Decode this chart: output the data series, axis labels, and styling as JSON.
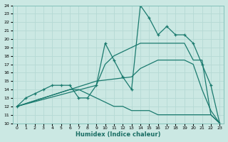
{
  "xlabel": "Humidex (Indice chaleur)",
  "xlabel_color": "#1a6e64",
  "xlim": [
    -0.5,
    23.5
  ],
  "ylim": [
    10,
    24
  ],
  "xticks": [
    0,
    1,
    2,
    3,
    4,
    5,
    6,
    7,
    8,
    9,
    10,
    11,
    12,
    13,
    14,
    15,
    16,
    17,
    18,
    19,
    20,
    21,
    22,
    23
  ],
  "yticks": [
    10,
    11,
    12,
    13,
    14,
    15,
    16,
    17,
    18,
    19,
    20,
    21,
    22,
    23,
    24
  ],
  "bg_color": "#cbe8e3",
  "line_color": "#1a7a6e",
  "grid_color": "#b5d9d4",
  "line1_x": [
    0,
    1,
    2,
    3,
    4,
    5,
    6,
    7,
    8,
    9,
    10,
    11,
    12,
    13,
    14,
    15,
    16,
    17,
    18,
    19,
    20,
    21,
    22,
    23
  ],
  "line1_y": [
    12,
    13,
    13.5,
    14,
    14.5,
    14.5,
    14.5,
    13,
    13,
    14.5,
    19.5,
    17.5,
    15.5,
    14,
    24,
    22.5,
    20.5,
    21.5,
    20.5,
    20.5,
    19.5,
    17,
    14.5,
    10
  ],
  "line2_x": [
    0,
    9,
    10,
    11,
    12,
    13,
    14,
    15,
    16,
    17,
    18,
    19,
    20,
    21,
    22,
    23
  ],
  "line2_y": [
    12,
    14.5,
    17,
    18,
    18.5,
    19,
    19.5,
    19.5,
    19.5,
    19.5,
    19.5,
    19.5,
    17.5,
    17.5,
    11,
    10
  ],
  "line3_x": [
    0,
    9,
    13,
    14,
    15,
    16,
    17,
    18,
    19,
    20,
    21,
    22,
    23
  ],
  "line3_y": [
    12,
    15,
    15.5,
    16.5,
    17,
    17.5,
    17.5,
    17.5,
    17.5,
    17,
    14,
    11.5,
    10
  ],
  "line4_x": [
    0,
    6,
    7,
    8,
    9,
    10,
    11,
    12,
    13,
    14,
    15,
    16,
    17,
    18,
    19,
    20,
    21,
    22,
    23
  ],
  "line4_y": [
    12,
    14,
    14,
    13.5,
    13,
    12.5,
    12,
    12,
    11.5,
    11.5,
    11.5,
    11,
    11,
    11,
    11,
    11,
    11,
    11,
    10
  ]
}
